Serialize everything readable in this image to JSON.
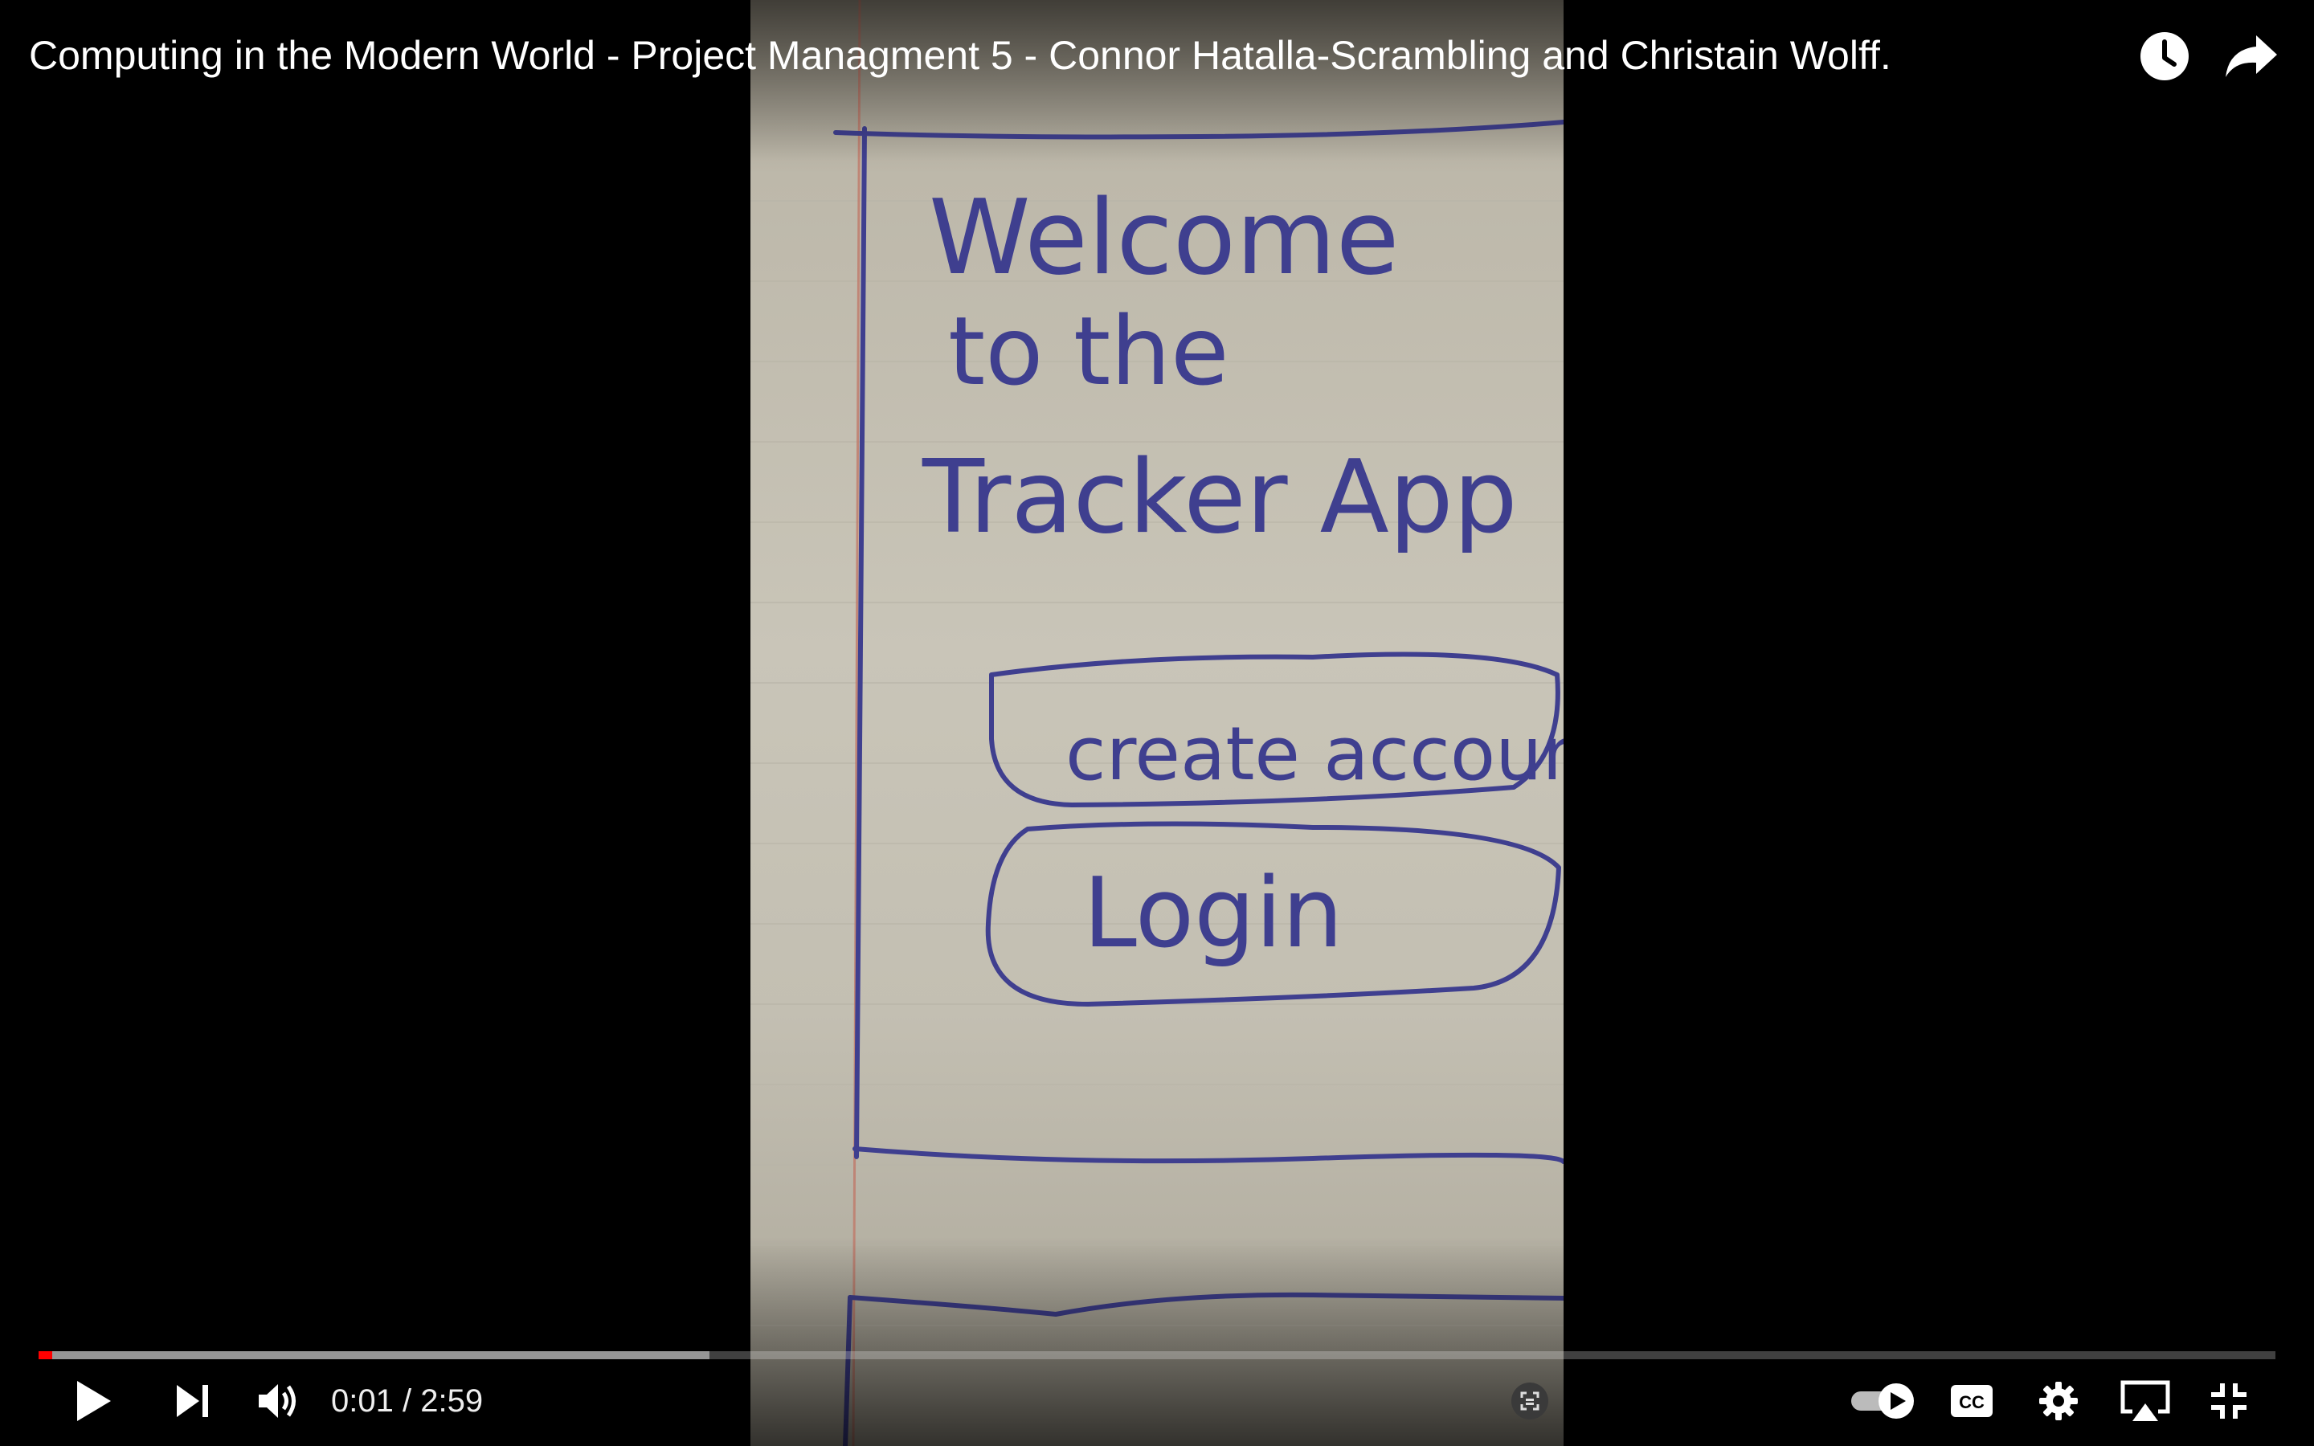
{
  "video": {
    "title": "Computing in the Modern World - Project Managment 5 - Connor Hatalla-Scrambling and Christain Wolff.",
    "current_time": "0:01",
    "time_separator": "/",
    "duration": "2:59",
    "progress_played": 0.006,
    "progress_buffered": 0.3
  },
  "frame_content": {
    "heading_line1": "Welcome",
    "heading_line2": "to the",
    "heading_line3": "Tracker App",
    "button1": "create account",
    "button2": "Login"
  },
  "controls": {
    "top_right": [
      "watch-later-icon",
      "share-icon"
    ],
    "left": [
      "play-icon",
      "next-icon",
      "volume-icon"
    ],
    "right": [
      "screenshot-icon",
      "autoplay-toggle",
      "captions-icon",
      "settings-icon",
      "airplay-icon",
      "exit-fullscreen-icon"
    ]
  },
  "colors": {
    "progress_red": "#ff0000",
    "paper": "#c9c5b8",
    "ink": "#3a3a8a"
  }
}
